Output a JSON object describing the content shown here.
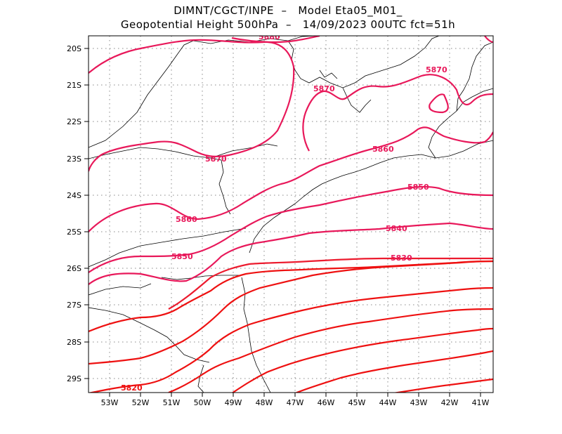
{
  "header": {
    "line1": "DIMNT/CGCT/INPE  –   Model Eta05_M01_",
    "line2": "Geopotential Height 500hPa  –   14/09/2023 00UTC fct=51h"
  },
  "axes": {
    "lat_labels": [
      "20S",
      "21S",
      "22S",
      "23S",
      "24S",
      "25S",
      "26S",
      "27S",
      "28S",
      "29S"
    ],
    "lon_labels": [
      "53W",
      "52W",
      "51W",
      "50W",
      "49W",
      "48W",
      "47W",
      "46W",
      "45W",
      "44W",
      "43W",
      "42W",
      "41W"
    ]
  },
  "colors": {
    "contour_high": "#e8185a",
    "contour_low": "#ee1111",
    "coast": "#000000",
    "grid": "#888888"
  },
  "contour_labels": [
    {
      "text": "5880",
      "color": "#e8185a"
    },
    {
      "text": "5870",
      "color": "#e8185a"
    },
    {
      "text": "5870",
      "color": "#e8185a"
    },
    {
      "text": "5870",
      "color": "#e8185a"
    },
    {
      "text": "5860",
      "color": "#e8185a"
    },
    {
      "text": "5860",
      "color": "#e8185a"
    },
    {
      "text": "5850",
      "color": "#e8185a"
    },
    {
      "text": "5850",
      "color": "#e8185a"
    },
    {
      "text": "5840",
      "color": "#e8185a"
    },
    {
      "text": "5830",
      "color": "#e8185a"
    },
    {
      "text": "5820",
      "color": "#ee1111"
    }
  ]
}
